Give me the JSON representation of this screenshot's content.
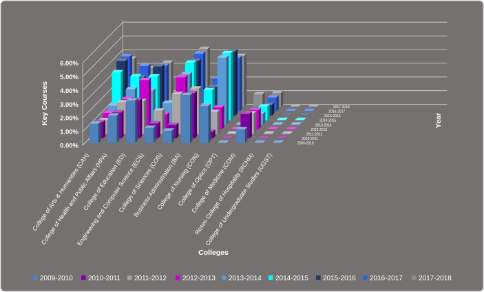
{
  "chart_data": {
    "type": "bar",
    "subtype": "3d-column",
    "title": "",
    "xlabel": "Colleges",
    "ylabel": "Key Courses",
    "zlabel": "Year",
    "ylim": [
      0,
      6
    ],
    "y_ticks": [
      "0.00%",
      "1.00%",
      "2.00%",
      "3.00%",
      "4.00%",
      "5.00%",
      "6.00%"
    ],
    "categories": [
      "College of Arts & Humanities (CAH)",
      "College of Health and Public Affairs (HPA)",
      "College of Education (ED)",
      "Engineering and Computer Science (ECS)",
      "College of Sciences (COS)",
      "Business Administration (BA)",
      "College of Nursing (CON)",
      "College of Optics (OPT)",
      "College of Medicine (COM)",
      "Rosen College of Hospitality (RCHM)",
      "College of Undergraduate Studies (UGST)"
    ],
    "series": [
      {
        "name": "2009-2010",
        "color": "#4f81bd",
        "values": [
          1.4,
          2.0,
          3.1,
          1.1,
          0.9,
          3.5,
          2.7,
          0.0,
          1.0,
          0.0,
          0.0
        ]
      },
      {
        "name": "2010-2011",
        "color": "#7f00a0",
        "values": [
          1.2,
          1.9,
          2.8,
          1.1,
          1.0,
          3.3,
          0.5,
          0.0,
          1.8,
          0.0,
          0.0
        ]
      },
      {
        "name": "2011-2012",
        "color": "#a6a6a6",
        "values": [
          1.0,
          2.3,
          2.4,
          1.7,
          2.9,
          3.3,
          1.6,
          0.0,
          1.5,
          0.0,
          0.0
        ]
      },
      {
        "name": "2012-2013",
        "color": "#cc00cc",
        "values": [
          1.2,
          2.2,
          3.6,
          1.1,
          3.8,
          1.6,
          1.6,
          0.0,
          1.4,
          0.0,
          0.0
        ]
      },
      {
        "name": "2013-2014",
        "color": "#5b9bd5",
        "values": [
          1.4,
          2.6,
          2.5,
          1.6,
          3.7,
          1.4,
          4.9,
          0.0,
          0.8,
          0.0,
          0.0
        ]
      },
      {
        "name": "2014-2015",
        "color": "#00ffff",
        "values": [
          3.5,
          3.2,
          3.2,
          1.3,
          4.2,
          2.2,
          4.9,
          0.0,
          1.0,
          0.0,
          0.0
        ]
      },
      {
        "name": "2015-2016",
        "color": "#1f3864",
        "values": [
          4.0,
          2.8,
          3.6,
          1.0,
          4.0,
          2.1,
          4.7,
          0.0,
          0.8,
          0.0,
          0.0
        ]
      },
      {
        "name": "2016-2017",
        "color": "#2e5ee0",
        "values": [
          4.0,
          3.3,
          3.3,
          1.0,
          4.2,
          2.4,
          3.9,
          0.0,
          1.0,
          0.0,
          0.0
        ]
      },
      {
        "name": "2017-2018",
        "color": "#8c8c8c",
        "values": [
          3.5,
          2.8,
          3.2,
          1.0,
          4.2,
          1.9,
          3.7,
          0.9,
          1.0,
          0.0,
          0.0
        ]
      }
    ],
    "legend": "bottom",
    "grid": true
  }
}
